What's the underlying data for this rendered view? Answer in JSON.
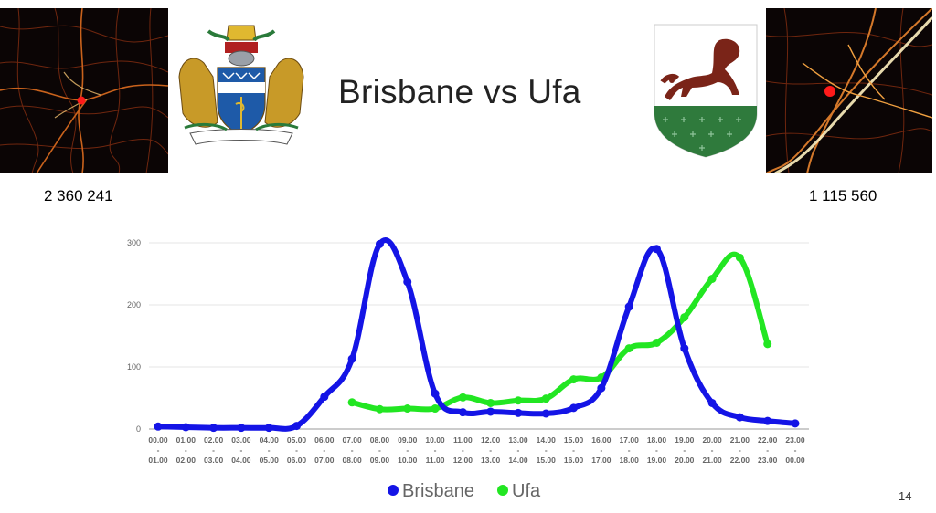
{
  "slide": {
    "title": "Brisbane vs Ufa",
    "population_left": "2 360 241",
    "population_right": "1 115 560",
    "page_number": "14"
  },
  "images": {
    "left_map": "heatmap-street-map-brisbane",
    "left_emblem": "coat-of-arms-brisbane",
    "right_emblem": "coat-of-arms-ufa",
    "right_map": "heatmap-street-map-ufa"
  },
  "colors": {
    "brisbane": "#1414e6",
    "ufa": "#22e622",
    "grid": "#e6e6e6"
  },
  "chart_data": {
    "type": "line",
    "title": "",
    "xlabel": "",
    "ylabel": "",
    "ylim": [
      0,
      300
    ],
    "yticks": [
      0,
      100,
      200,
      300
    ],
    "grid": true,
    "legend_position": "bottom",
    "categories": [
      "00.00 - 01.00",
      "01.00 - 02.00",
      "02.00 - 03.00",
      "03.00 - 04.00",
      "04.00 - 05.00",
      "05.00 - 06.00",
      "06.00 - 07.00",
      "07.00 - 08.00",
      "08.00 - 09.00",
      "09.00 - 10.00",
      "10.00 - 11.00",
      "11.00 - 12.00",
      "12.00 - 13.00",
      "13.00 - 14.00",
      "14.00 - 15.00",
      "15.00 - 16.00",
      "16.00 - 17.00",
      "17.00 - 18.00",
      "18.00 - 19.00",
      "19.00 - 20.00",
      "20.00 - 21.00",
      "21.00 - 22.00",
      "22.00 - 23.00",
      "23.00 - 00.00"
    ],
    "series": [
      {
        "name": "Brisbane",
        "values": [
          4,
          3,
          2,
          2,
          2,
          5,
          52,
          113,
          298,
          237,
          57,
          27,
          28,
          26,
          25,
          34,
          66,
          197,
          290,
          130,
          42,
          19,
          13,
          9
        ]
      },
      {
        "name": "Ufa",
        "values": [
          null,
          null,
          null,
          null,
          null,
          null,
          null,
          43,
          32,
          33,
          33,
          51,
          42,
          46,
          49,
          80,
          83,
          130,
          139,
          180,
          242,
          276,
          137,
          null
        ]
      }
    ]
  }
}
